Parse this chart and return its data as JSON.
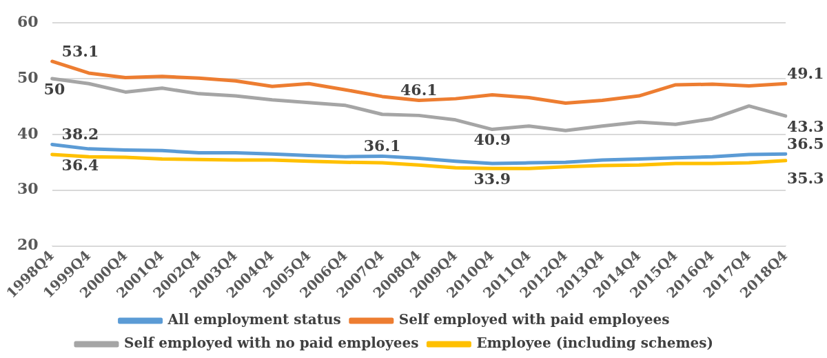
{
  "chart_data": {
    "type": "line",
    "categories": [
      "1998Q4",
      "1999Q4",
      "2000Q4",
      "2001Q4",
      "2002Q4",
      "2003Q4",
      "2004Q4",
      "2005Q4",
      "2006Q4",
      "2007Q4",
      "2008Q4",
      "2009Q4",
      "2010Q4",
      "2011Q4",
      "2012Q4",
      "2013Q4",
      "2014Q4",
      "2015Q4",
      "2016Q4",
      "2017Q4",
      "2018Q4"
    ],
    "series": [
      {
        "name": "All employment status",
        "color": "#5b9bd5",
        "values": [
          38.2,
          37.4,
          37.2,
          37.1,
          36.7,
          36.7,
          36.5,
          36.2,
          36.0,
          36.1,
          35.7,
          35.2,
          34.8,
          34.9,
          35.0,
          35.4,
          35.6,
          35.8,
          36.0,
          36.4,
          36.5
        ],
        "value_labels": [
          "38.2",
          null,
          null,
          null,
          null,
          null,
          null,
          null,
          null,
          "36.1",
          null,
          null,
          null,
          null,
          null,
          null,
          null,
          null,
          null,
          null,
          "36.5"
        ]
      },
      {
        "name": "Self employed with paid employees",
        "color": "#ed7d31",
        "values": [
          53.1,
          51.0,
          50.2,
          50.4,
          50.1,
          49.6,
          48.6,
          49.1,
          48.0,
          46.8,
          46.1,
          46.4,
          47.1,
          46.6,
          45.6,
          46.1,
          46.9,
          48.9,
          49.0,
          48.7,
          49.1
        ],
        "value_labels": [
          "53.1",
          null,
          null,
          null,
          null,
          null,
          null,
          null,
          null,
          null,
          "46.1",
          null,
          null,
          null,
          null,
          null,
          null,
          null,
          null,
          null,
          "49.1"
        ]
      },
      {
        "name": "Self employed with no paid employees",
        "color": "#a5a5a5",
        "values": [
          50,
          49.1,
          47.6,
          48.3,
          47.3,
          46.9,
          46.2,
          45.7,
          45.2,
          43.6,
          43.4,
          42.6,
          40.9,
          41.5,
          40.7,
          41.5,
          42.2,
          41.8,
          42.8,
          45.1,
          43.3
        ],
        "value_labels": [
          "50",
          null,
          null,
          null,
          null,
          null,
          null,
          null,
          null,
          null,
          null,
          null,
          "40.9",
          null,
          null,
          null,
          null,
          null,
          null,
          null,
          "43.3"
        ]
      },
      {
        "name": "Employee (including schemes)",
        "color": "#ffc000",
        "values": [
          36.4,
          36.0,
          35.9,
          35.6,
          35.5,
          35.4,
          35.4,
          35.2,
          35.0,
          34.9,
          34.5,
          34.0,
          33.9,
          33.9,
          34.2,
          34.4,
          34.5,
          34.8,
          34.8,
          34.9,
          35.3
        ],
        "value_labels": [
          "36.4",
          null,
          null,
          null,
          null,
          null,
          null,
          null,
          null,
          null,
          null,
          null,
          "33.9",
          null,
          null,
          null,
          null,
          null,
          null,
          null,
          "35.3"
        ]
      }
    ],
    "ylim": [
      20,
      60
    ],
    "yticks": [
      20,
      30,
      40,
      50,
      60
    ],
    "grid": "y",
    "legend": "bottom",
    "marker": "none",
    "line_style": "solid"
  }
}
